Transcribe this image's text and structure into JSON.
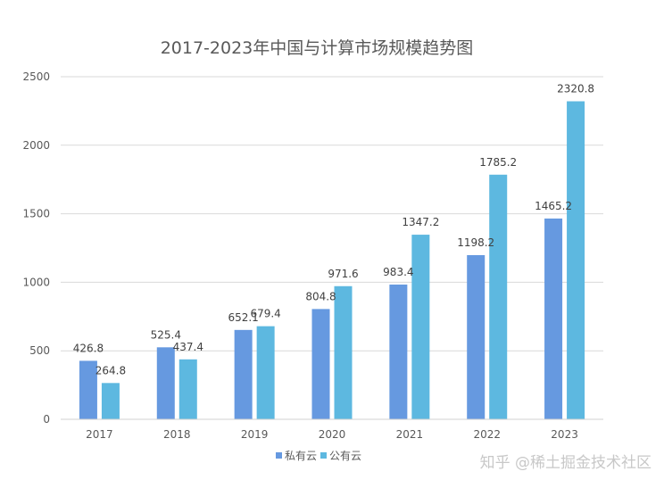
{
  "chart_data": {
    "type": "bar",
    "title": "2017-2023年中国与计算市场规模趋势图",
    "xlabel": "",
    "ylabel": "",
    "categories": [
      "2017",
      "2018",
      "2019",
      "2020",
      "2021",
      "2022",
      "2023"
    ],
    "ylim": [
      0,
      2500
    ],
    "yticks": [
      "0",
      "500",
      "1000",
      "1500",
      "2000",
      "2500"
    ],
    "grid": true,
    "legend_position": "bottom",
    "series": [
      {
        "name": "私有云",
        "color": "#6699e0",
        "values": [
          426.8,
          525.4,
          652.1,
          804.8,
          983.4,
          1198.2,
          1465.2
        ],
        "labels": [
          "426.8",
          "525.4",
          "652.1",
          "804.8",
          "983.4",
          "1198.2",
          "1465.2"
        ]
      },
      {
        "name": "公有云",
        "color": "#5db8e0",
        "values": [
          264.8,
          437.4,
          679.4,
          971.6,
          1347.2,
          1785.2,
          2320.8
        ],
        "labels": [
          "264.8",
          "437.4",
          "679.4",
          "971.6",
          "1347.2",
          "1785.2",
          "2320.8"
        ]
      }
    ]
  },
  "watermark": {
    "text": "知乎 @稀土掘金技术社区"
  }
}
